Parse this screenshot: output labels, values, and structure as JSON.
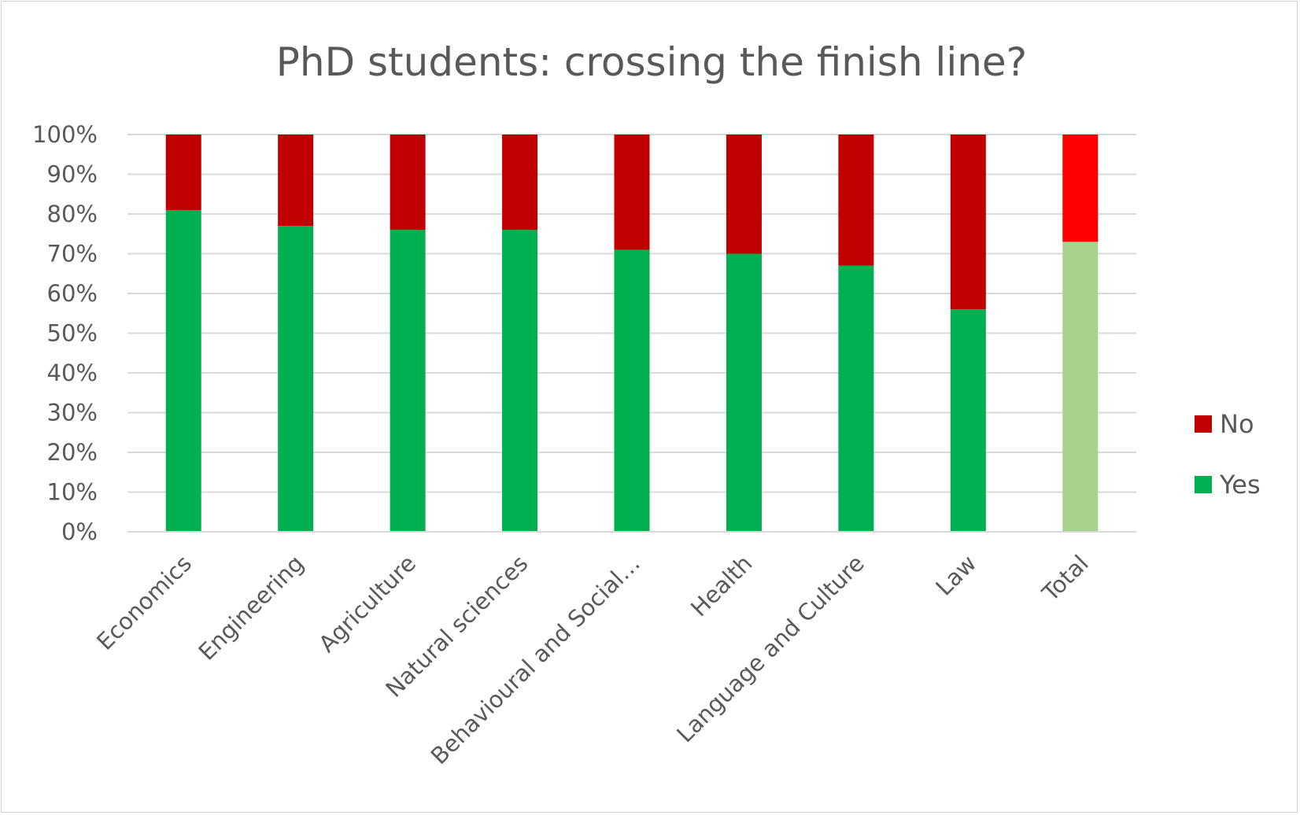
{
  "chart_data": {
    "type": "bar",
    "stacked": true,
    "normalized": true,
    "title": "PhD students: crossing the finish line?",
    "xlabel": "",
    "ylabel": "",
    "ylim": [
      0,
      100
    ],
    "yticks": [
      "0%",
      "10%",
      "20%",
      "30%",
      "40%",
      "50%",
      "60%",
      "70%",
      "80%",
      "90%",
      "100%"
    ],
    "categories": [
      "Economics",
      "Engineering",
      "Agriculture",
      "Natural sciences",
      "Behavioural and Social…",
      "Health",
      "Language and Culture",
      "Law",
      "Total"
    ],
    "series": [
      {
        "name": "Yes",
        "color": "#00b050",
        "values": [
          81,
          77,
          76,
          76,
          71,
          70,
          67,
          56,
          73
        ],
        "point_colors": {
          "8": "#a9d18e"
        }
      },
      {
        "name": "No",
        "color": "#c00000",
        "values": [
          19,
          23,
          24,
          24,
          29,
          30,
          33,
          44,
          27
        ],
        "point_colors": {
          "8": "#ff0000"
        }
      }
    ],
    "grid": true,
    "legend": "right",
    "legend_order": [
      "No",
      "Yes"
    ]
  }
}
